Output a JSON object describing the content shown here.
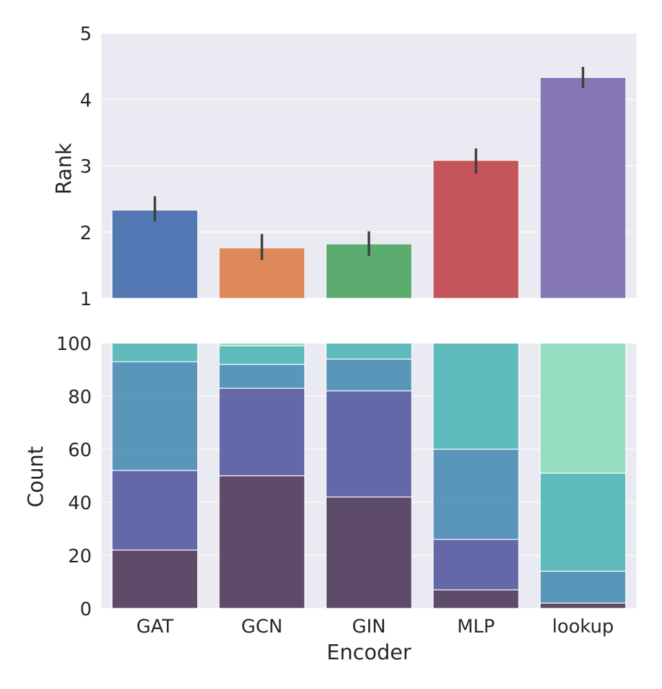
{
  "chart_data": [
    {
      "type": "bar",
      "categories": [
        "GAT",
        "GCN",
        "GIN",
        "MLP",
        "lookup"
      ],
      "values": [
        2.33,
        1.76,
        1.82,
        3.08,
        4.33
      ],
      "error_bars": [
        [
          2.16,
          2.54
        ],
        [
          1.58,
          1.97
        ],
        [
          1.64,
          2.01
        ],
        [
          2.88,
          3.26
        ],
        [
          4.17,
          4.49
        ]
      ],
      "ylabel": "Rank",
      "ylim": [
        1,
        5
      ],
      "yticks": [
        "1",
        "2",
        "3",
        "4",
        "5"
      ],
      "grid": true,
      "colors": [
        "#4c72b0",
        "#dd8452",
        "#55a868",
        "#c44e52",
        "#8172b3"
      ]
    },
    {
      "type": "bar",
      "stacked": true,
      "categories": [
        "GAT",
        "GCN",
        "GIN",
        "MLP",
        "lookup"
      ],
      "xlabel": "Encoder",
      "ylabel": "Count",
      "ylim": [
        0,
        100
      ],
      "yticks": [
        "0",
        "20",
        "40",
        "60",
        "80",
        "100"
      ],
      "grid": true,
      "series": [
        {
          "values": [
            22,
            50,
            42,
            7,
            2
          ],
          "color": "#4f3a5c"
        },
        {
          "values": [
            30,
            33,
            40,
            19,
            0
          ],
          "color": "#575aa0"
        },
        {
          "values": [
            41,
            9,
            12,
            34,
            12
          ],
          "color": "#4b8db5"
        },
        {
          "values": [
            7,
            7,
            6,
            40,
            37
          ],
          "color": "#51b5b7"
        },
        {
          "values": [
            0,
            1,
            0,
            0,
            49
          ],
          "color": "#8edbbb"
        }
      ]
    }
  ]
}
